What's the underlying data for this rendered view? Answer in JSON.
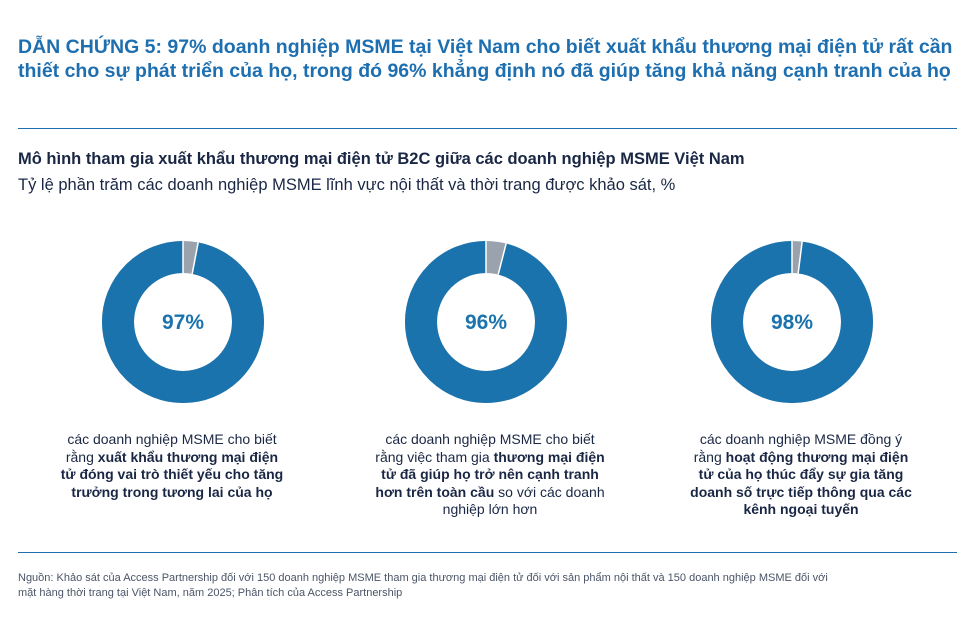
{
  "headline": "DẪN CHỨNG 5: 97% doanh nghiệp MSME tại Việt Nam cho biết xuất khẩu thương mại điện tử rất cần thiết cho sự phát triển của họ, trong đó 96% khẳng định nó đã giúp tăng khả năng cạnh tranh của họ",
  "colors": {
    "accent": "#1e6fb0",
    "donut": "#1a73ad",
    "remainder": "#9aa3ad"
  },
  "chart_data": {
    "type": "pie",
    "title": "Mô hình tham gia xuất khẩu thương mại điện tử B2C giữa các doanh nghiệp MSME Việt Nam",
    "subtitle": "Tỷ lệ phần trăm các doanh nghiệp MSME lĩnh vực nội thất và thời trang được khảo sát, %",
    "donuts": [
      {
        "value": 97,
        "label": "97%",
        "caption": [
          {
            "text": "các doanh nghiệp MSME cho biết rằng ",
            "bold": false
          },
          {
            "text": "xuất khẩu thương mại điện tử đóng vai trò thiết yếu cho tăng trưởng trong tương lai của họ",
            "bold": true
          }
        ]
      },
      {
        "value": 96,
        "label": "96%",
        "caption": [
          {
            "text": "các doanh nghiệp MSME cho biết rằng việc tham gia ",
            "bold": false
          },
          {
            "text": "thương mại điện tử đã giúp họ trở nên cạnh tranh hơn trên toàn cầu",
            "bold": true
          },
          {
            "text": " so với các doanh nghiệp lớn hơn",
            "bold": false
          }
        ]
      },
      {
        "value": 98,
        "label": "98%",
        "caption": [
          {
            "text": "các doanh nghiệp MSME đồng ý rằng ",
            "bold": false
          },
          {
            "text": "hoạt động thương mại điện tử của họ thúc đẩy sự gia tăng doanh số trực tiếp thông qua các kênh ngoại tuyến",
            "bold": true
          }
        ]
      }
    ]
  },
  "source": "Nguồn: Khảo sát của Access Partnership đối với 150 doanh nghiệp MSME tham gia thương mại điện tử đối với sản phẩm nội thất và 150 doanh nghiệp MSME đối với mặt hàng thời trang tại Việt Nam, năm 2025; Phân tích của Access Partnership"
}
